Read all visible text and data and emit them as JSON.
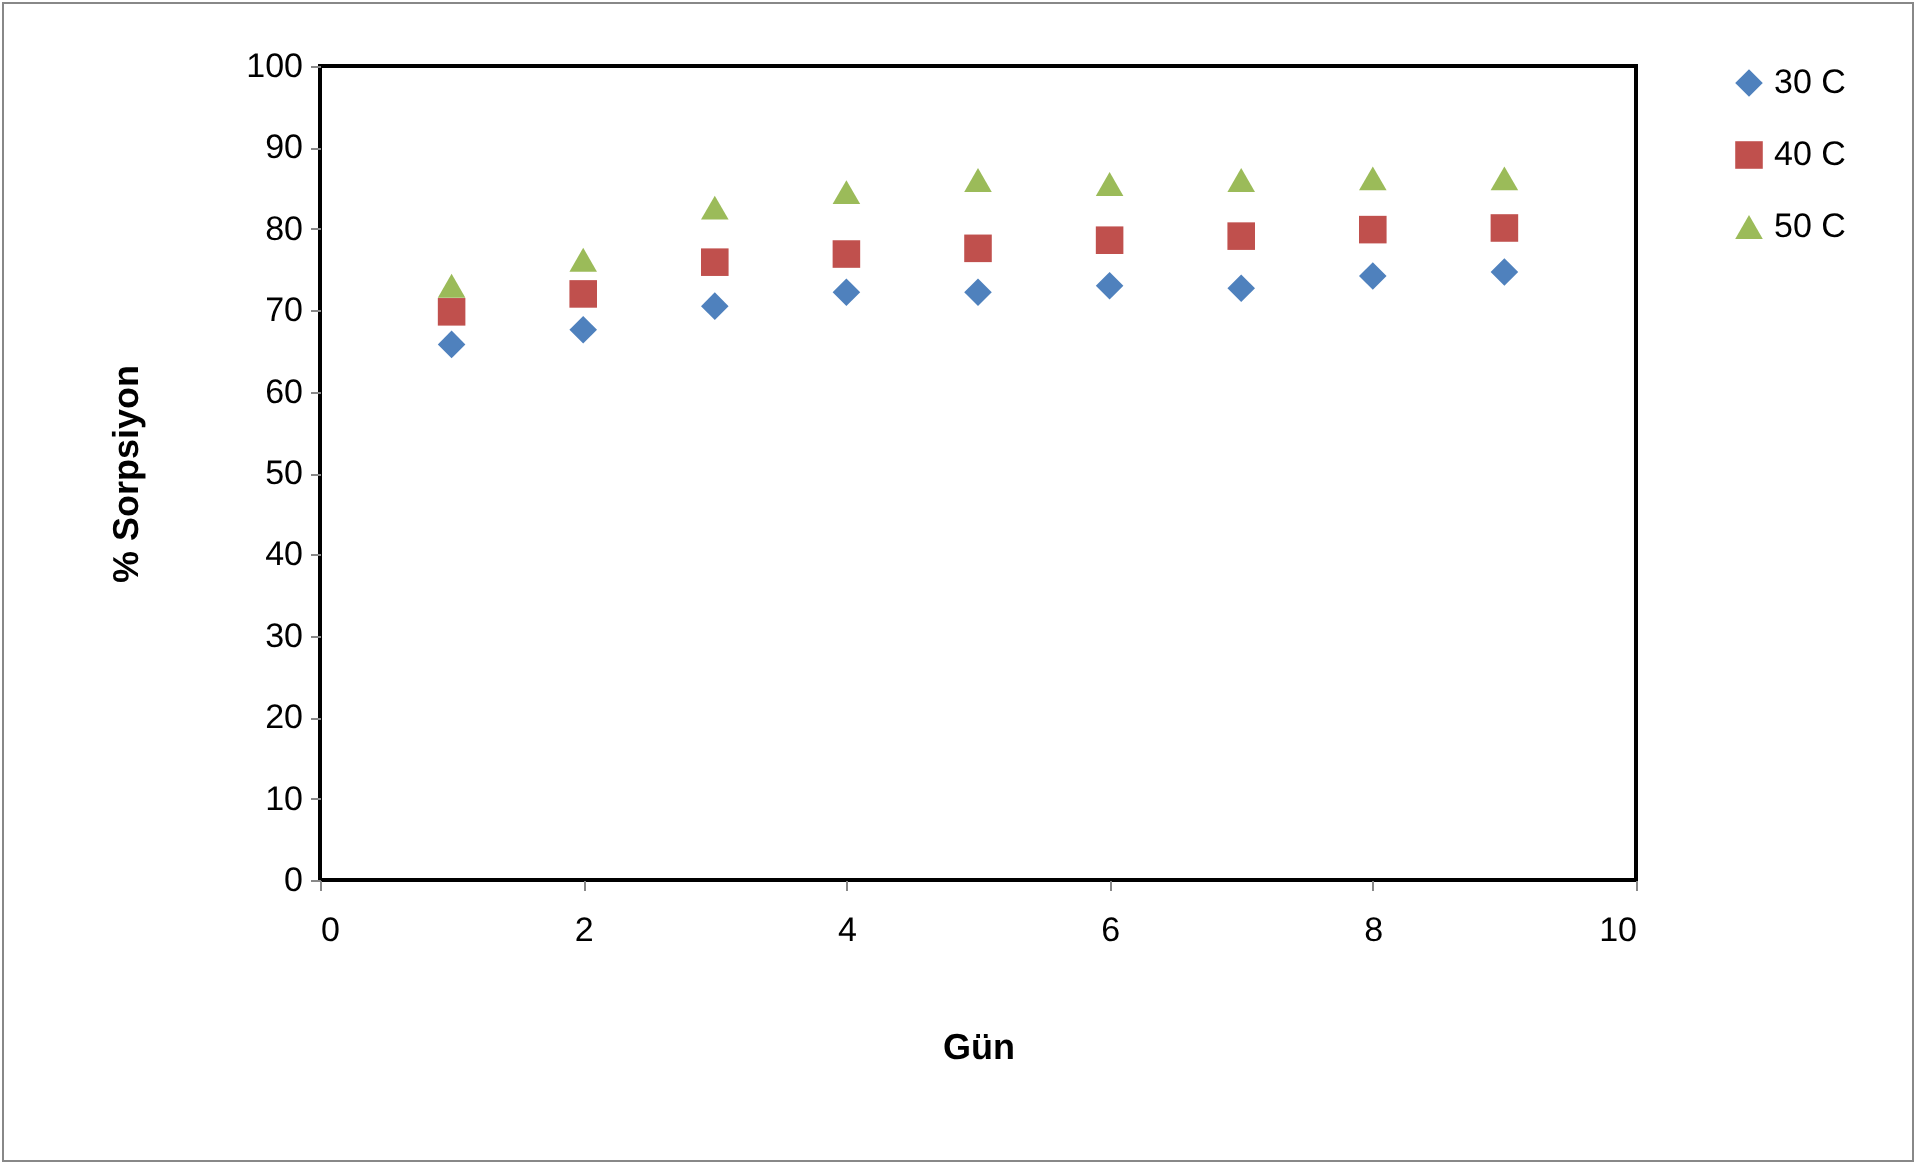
{
  "chart_data": {
    "type": "scatter",
    "xlabel": "Gün",
    "ylabel": "% Sorpsiyon",
    "x": [
      1,
      2,
      3,
      4,
      5,
      6,
      7,
      8,
      9
    ],
    "xlim": [
      0,
      10
    ],
    "xticks": [
      0,
      2,
      4,
      6,
      8,
      10
    ],
    "ylim": [
      0,
      100
    ],
    "yticks": [
      0,
      10,
      20,
      30,
      40,
      50,
      60,
      70,
      80,
      90,
      100
    ],
    "grid": false,
    "legend": "right",
    "series": [
      {
        "name": "30 C",
        "color": "#4f81bd",
        "marker": "diamond",
        "values": [
          65.8,
          67.6,
          70.5,
          72.2,
          72.2,
          73.0,
          72.7,
          74.2,
          74.7
        ]
      },
      {
        "name": "40 C",
        "color": "#c0504d",
        "marker": "square",
        "values": [
          69.8,
          72.0,
          75.9,
          76.9,
          77.6,
          78.6,
          79.1,
          79.9,
          80.1
        ]
      },
      {
        "name": "50 C",
        "color": "#9bbb59",
        "marker": "triangle",
        "values": [
          73.0,
          76.2,
          82.6,
          84.5,
          86.0,
          85.5,
          86.0,
          86.2,
          86.2
        ]
      }
    ]
  }
}
